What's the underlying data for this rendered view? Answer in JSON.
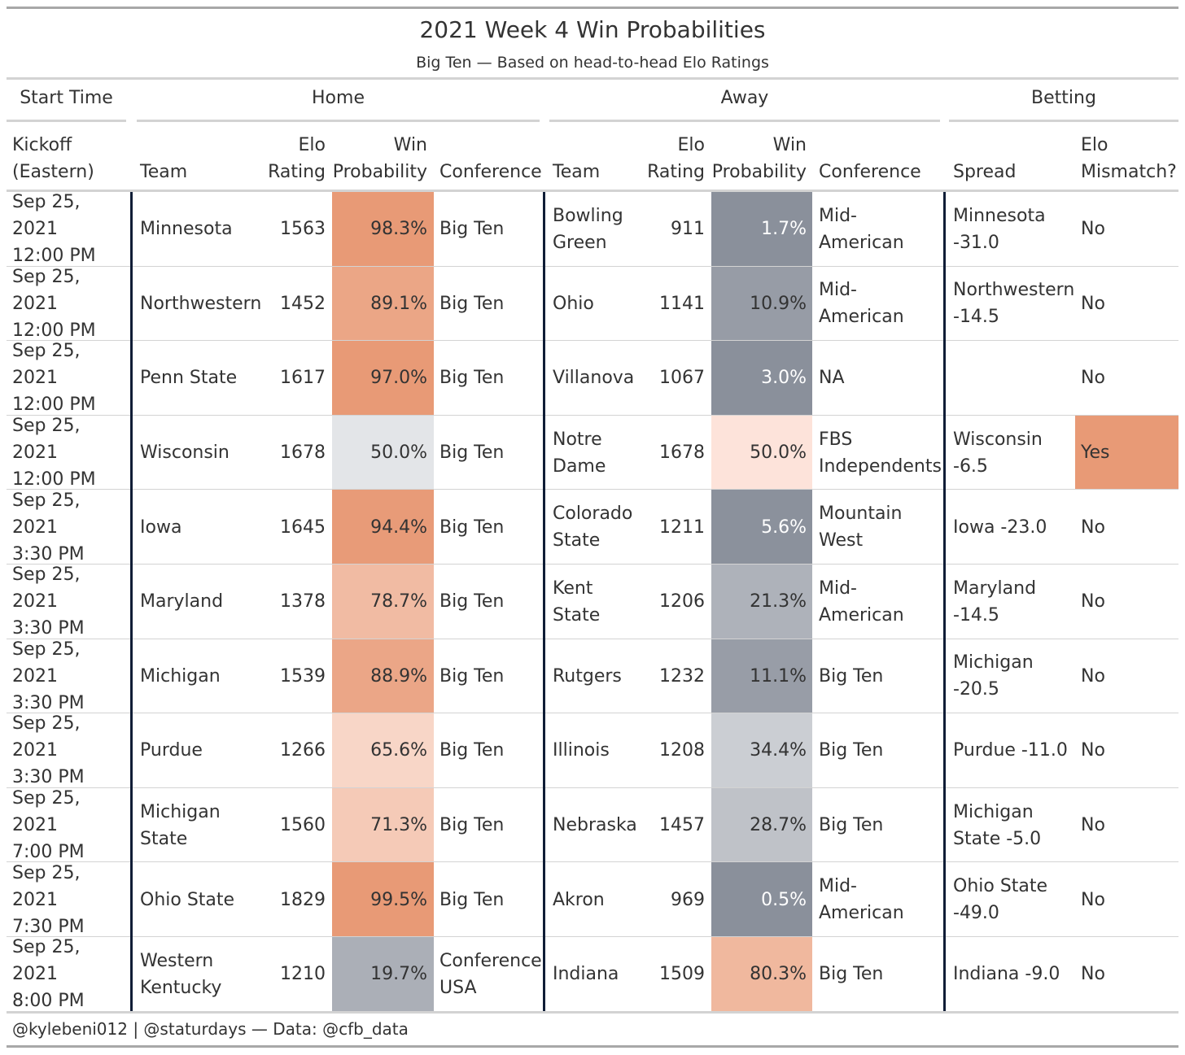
{
  "chart_data": {
    "type": "table",
    "title": "2021 Week 4 Win Probabilities",
    "subtitle": "Big Ten — Based on head-to-head Elo Ratings",
    "spanners": {
      "start_time": "Start Time",
      "home": "Home",
      "away": "Away",
      "betting": "Betting"
    },
    "columns": {
      "kickoff": [
        "Kickoff",
        "(Eastern)"
      ],
      "home_team": [
        "",
        "Team"
      ],
      "home_elo": [
        "Elo",
        "Rating"
      ],
      "home_prob": [
        "Win",
        "Probability"
      ],
      "home_conf": [
        "",
        "Conference"
      ],
      "away_team": [
        "",
        "Team"
      ],
      "away_elo": [
        "Elo",
        "Rating"
      ],
      "away_prob": [
        "Win",
        "Probability"
      ],
      "away_conf": [
        "",
        "Conference"
      ],
      "spread": [
        "",
        "Spread"
      ],
      "mismatch": [
        "Elo",
        "Mismatch?"
      ]
    },
    "rows": [
      {
        "kickoff": [
          "Sep 25, 2021",
          "12:00 PM"
        ],
        "home_team": [
          "Minnesota"
        ],
        "home_elo": "1563",
        "home_prob": "98.3%",
        "home_prob_value": 98.3,
        "home_conf": [
          "Big Ten"
        ],
        "away_team": [
          "Bowling",
          "Green"
        ],
        "away_elo": "911",
        "away_prob": "1.7%",
        "away_prob_value": 1.7,
        "away_conf": [
          "Mid-",
          "American"
        ],
        "spread": [
          "Minnesota",
          "-31.0"
        ],
        "mismatch": "No"
      },
      {
        "kickoff": [
          "Sep 25, 2021",
          "12:00 PM"
        ],
        "home_team": [
          "Northwestern"
        ],
        "home_elo": "1452",
        "home_prob": "89.1%",
        "home_prob_value": 89.1,
        "home_conf": [
          "Big Ten"
        ],
        "away_team": [
          "Ohio"
        ],
        "away_elo": "1141",
        "away_prob": "10.9%",
        "away_prob_value": 10.9,
        "away_conf": [
          "Mid-",
          "American"
        ],
        "spread": [
          "Northwestern",
          "-14.5"
        ],
        "mismatch": "No"
      },
      {
        "kickoff": [
          "Sep 25, 2021",
          "12:00 PM"
        ],
        "home_team": [
          "Penn State"
        ],
        "home_elo": "1617",
        "home_prob": "97.0%",
        "home_prob_value": 97.0,
        "home_conf": [
          "Big Ten"
        ],
        "away_team": [
          "Villanova"
        ],
        "away_elo": "1067",
        "away_prob": "3.0%",
        "away_prob_value": 3.0,
        "away_conf": [
          "NA"
        ],
        "spread": [
          ""
        ],
        "mismatch": "No"
      },
      {
        "kickoff": [
          "Sep 25, 2021",
          "12:00 PM"
        ],
        "home_team": [
          "Wisconsin"
        ],
        "home_elo": "1678",
        "home_prob": "50.0%",
        "home_prob_value": 50.0,
        "home_conf": [
          "Big Ten"
        ],
        "away_team": [
          "Notre",
          "Dame"
        ],
        "away_elo": "1678",
        "away_prob": "50.0%",
        "away_prob_value": 50.0,
        "away_conf": [
          "FBS",
          "Independents"
        ],
        "spread": [
          "Wisconsin",
          "-6.5"
        ],
        "mismatch": "Yes"
      },
      {
        "kickoff": [
          "Sep 25, 2021",
          "3:30 PM"
        ],
        "home_team": [
          "Iowa"
        ],
        "home_elo": "1645",
        "home_prob": "94.4%",
        "home_prob_value": 94.4,
        "home_conf": [
          "Big Ten"
        ],
        "away_team": [
          "Colorado",
          "State"
        ],
        "away_elo": "1211",
        "away_prob": "5.6%",
        "away_prob_value": 5.6,
        "away_conf": [
          "Mountain",
          "West"
        ],
        "spread": [
          "Iowa -23.0"
        ],
        "mismatch": "No"
      },
      {
        "kickoff": [
          "Sep 25, 2021",
          "3:30 PM"
        ],
        "home_team": [
          "Maryland"
        ],
        "home_elo": "1378",
        "home_prob": "78.7%",
        "home_prob_value": 78.7,
        "home_conf": [
          "Big Ten"
        ],
        "away_team": [
          "Kent",
          "State"
        ],
        "away_elo": "1206",
        "away_prob": "21.3%",
        "away_prob_value": 21.3,
        "away_conf": [
          "Mid-",
          "American"
        ],
        "spread": [
          "Maryland",
          "-14.5"
        ],
        "mismatch": "No"
      },
      {
        "kickoff": [
          "Sep 25, 2021",
          "3:30 PM"
        ],
        "home_team": [
          "Michigan"
        ],
        "home_elo": "1539",
        "home_prob": "88.9%",
        "home_prob_value": 88.9,
        "home_conf": [
          "Big Ten"
        ],
        "away_team": [
          "Rutgers"
        ],
        "away_elo": "1232",
        "away_prob": "11.1%",
        "away_prob_value": 11.1,
        "away_conf": [
          "Big Ten"
        ],
        "spread": [
          "Michigan",
          "-20.5"
        ],
        "mismatch": "No"
      },
      {
        "kickoff": [
          "Sep 25, 2021",
          "3:30 PM"
        ],
        "home_team": [
          "Purdue"
        ],
        "home_elo": "1266",
        "home_prob": "65.6%",
        "home_prob_value": 65.6,
        "home_conf": [
          "Big Ten"
        ],
        "away_team": [
          "Illinois"
        ],
        "away_elo": "1208",
        "away_prob": "34.4%",
        "away_prob_value": 34.4,
        "away_conf": [
          "Big Ten"
        ],
        "spread": [
          "Purdue -11.0"
        ],
        "mismatch": "No"
      },
      {
        "kickoff": [
          "Sep 25, 2021",
          "7:00 PM"
        ],
        "home_team": [
          "Michigan",
          "State"
        ],
        "home_elo": "1560",
        "home_prob": "71.3%",
        "home_prob_value": 71.3,
        "home_conf": [
          "Big Ten"
        ],
        "away_team": [
          "Nebraska"
        ],
        "away_elo": "1457",
        "away_prob": "28.7%",
        "away_prob_value": 28.7,
        "away_conf": [
          "Big Ten"
        ],
        "spread": [
          "Michigan",
          "State -5.0"
        ],
        "mismatch": "No"
      },
      {
        "kickoff": [
          "Sep 25, 2021",
          "7:30 PM"
        ],
        "home_team": [
          "Ohio State"
        ],
        "home_elo": "1829",
        "home_prob": "99.5%",
        "home_prob_value": 99.5,
        "home_conf": [
          "Big Ten"
        ],
        "away_team": [
          "Akron"
        ],
        "away_elo": "969",
        "away_prob": "0.5%",
        "away_prob_value": 0.5,
        "away_conf": [
          "Mid-",
          "American"
        ],
        "spread": [
          "Ohio State",
          "-49.0"
        ],
        "mismatch": "No"
      },
      {
        "kickoff": [
          "Sep 25, 2021",
          "8:00 PM"
        ],
        "home_team": [
          "Western",
          "Kentucky"
        ],
        "home_elo": "1210",
        "home_prob": "19.7%",
        "home_prob_value": 19.7,
        "home_conf": [
          "Conference",
          "USA"
        ],
        "away_team": [
          "Indiana"
        ],
        "away_elo": "1509",
        "away_prob": "80.3%",
        "away_prob_value": 80.3,
        "away_conf": [
          "Big Ten"
        ],
        "spread": [
          "Indiana -9.0"
        ],
        "mismatch": "No"
      }
    ],
    "colors": {
      "high_win": "#e89a76",
      "mid_light": "#fcefe9",
      "neutral": "#e3e5e8",
      "low_win": "#8a909b",
      "mismatch_highlight": "#e89a76",
      "separator": "#0f1d36",
      "text_dark": "#333333"
    },
    "footer": "@kylebeni012 | @staturdays — Data: @cfb_data"
  }
}
